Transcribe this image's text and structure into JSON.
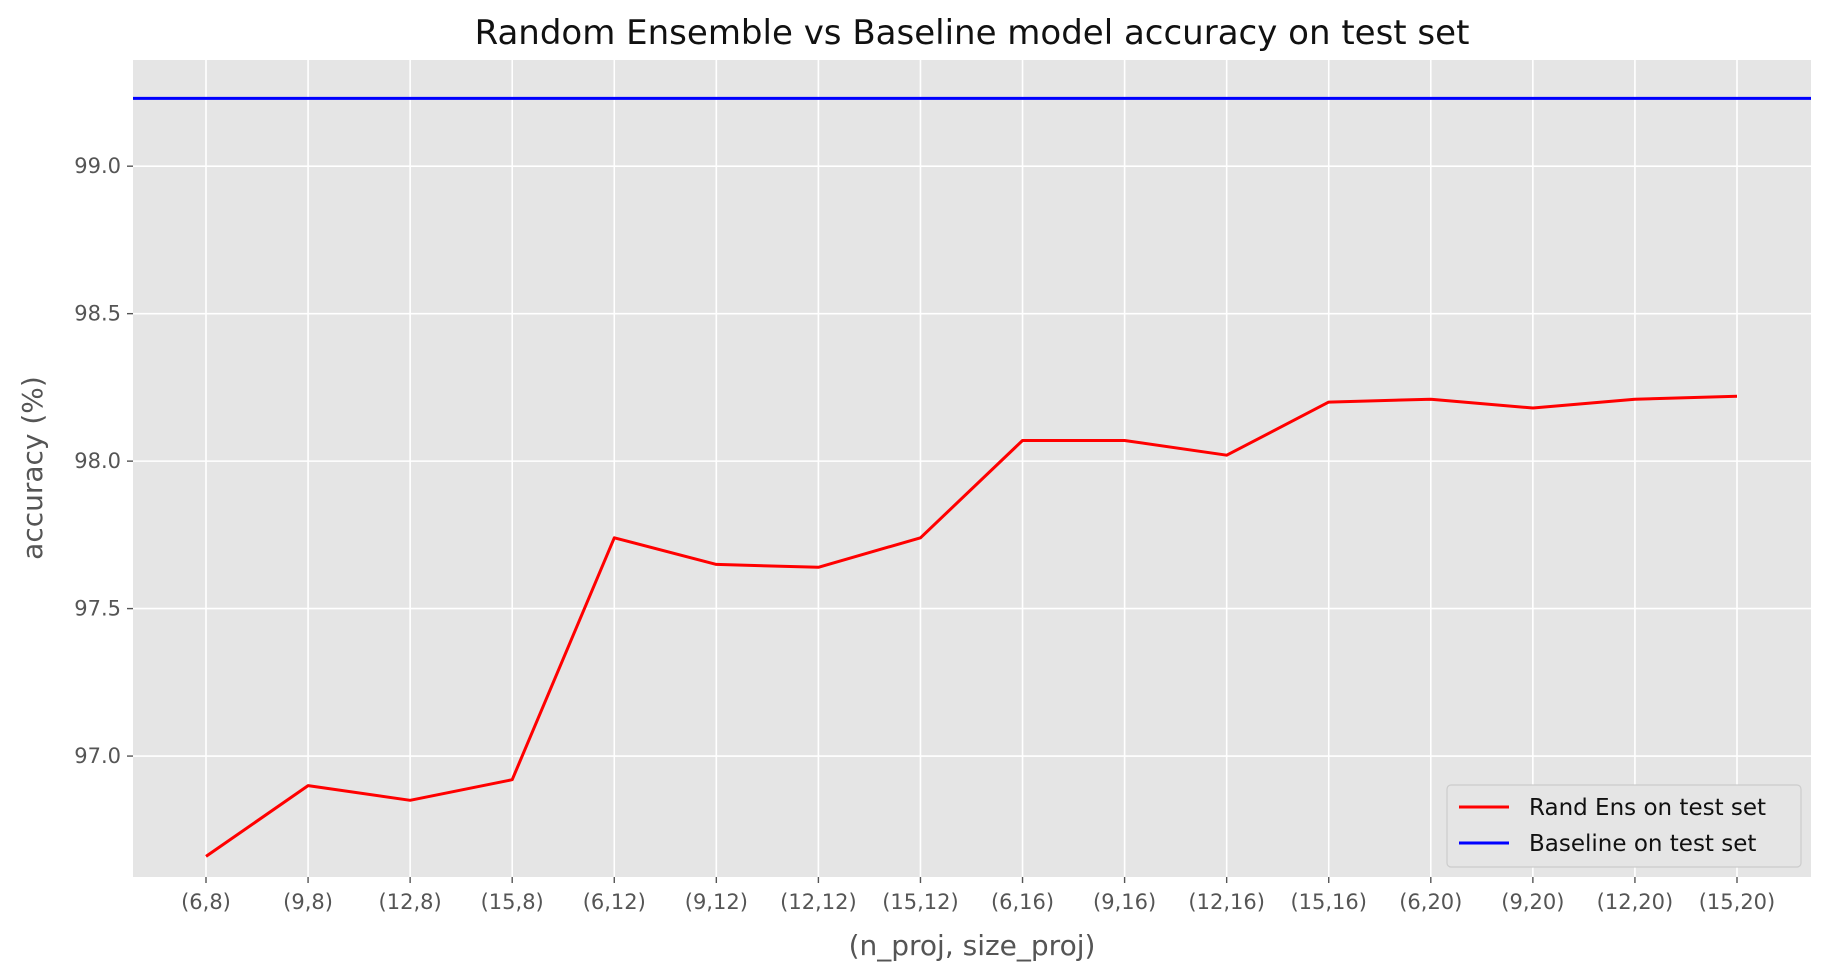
{
  "chart_data": {
    "type": "line",
    "title": "Random Ensemble vs Baseline model accuracy on test set",
    "xlabel": "(n_proj, size_proj)",
    "ylabel": "accuracy (%)",
    "categories": [
      "(6,8)",
      "(9,8)",
      "(12,8)",
      "(15,8)",
      "(6,12)",
      "(9,12)",
      "(12,12)",
      "(15,12)",
      "(6,16)",
      "(9,16)",
      "(12,16)",
      "(15,16)",
      "(6,20)",
      "(9,20)",
      "(12,20)",
      "(15,20)"
    ],
    "yticks": [
      97.0,
      97.5,
      98.0,
      98.5,
      99.0
    ],
    "ytick_labels": [
      "97.0",
      "97.5",
      "98.0",
      "98.5",
      "99.0"
    ],
    "ylim": [
      96.59,
      99.36
    ],
    "grid": true,
    "legend_position": "lower-right",
    "series": [
      {
        "name": "Rand Ens on test set",
        "color": "#ff0000",
        "values": [
          96.66,
          96.9,
          96.85,
          96.92,
          97.74,
          97.65,
          97.64,
          97.74,
          98.07,
          98.07,
          98.02,
          98.2,
          98.21,
          98.18,
          98.21,
          98.22
        ]
      },
      {
        "name": "Baseline on test set",
        "color": "#0000ff",
        "kind": "hline",
        "value": 99.23
      }
    ]
  }
}
